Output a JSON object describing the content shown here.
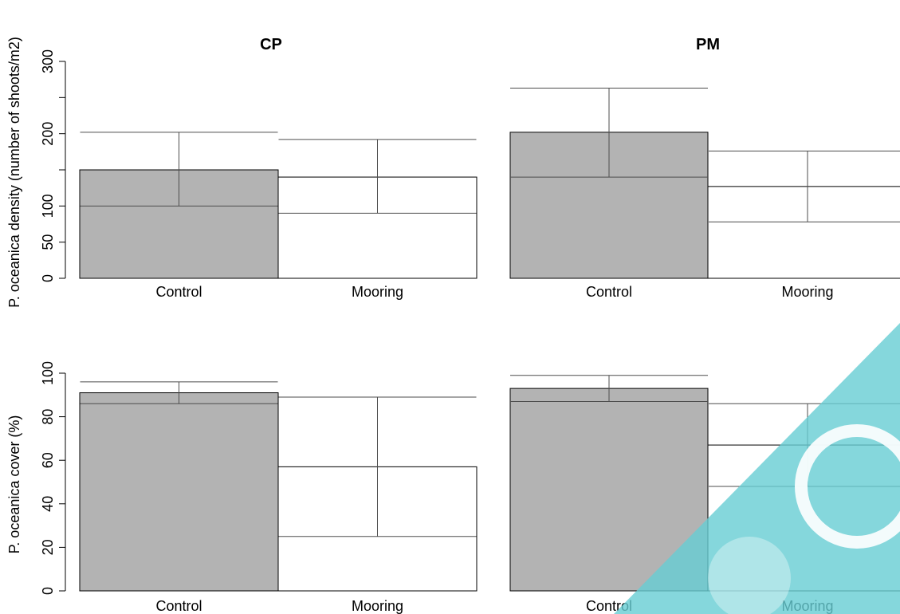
{
  "colors": {
    "control": "#b3b3b3",
    "mooring": "#ffffff",
    "stroke": "#000000",
    "errorbar": "#4d4d4d",
    "watermark": "#66cdd3"
  },
  "chart_data": [
    {
      "type": "bar",
      "title": "CP",
      "ylabel": "P. oceanica density (number of shoots/m2)",
      "categories": [
        "Control",
        "Mooring"
      ],
      "values": [
        150,
        140
      ],
      "error_low": [
        100,
        90
      ],
      "error_high": [
        202,
        192
      ],
      "ylim": [
        0,
        300
      ],
      "yticks": [
        0,
        50,
        100,
        200,
        300
      ],
      "grid": false
    },
    {
      "type": "bar",
      "title": "PM",
      "ylabel": "",
      "categories": [
        "Control",
        "Mooring"
      ],
      "values": [
        202,
        127
      ],
      "error_low": [
        140,
        78
      ],
      "error_high": [
        263,
        176
      ],
      "ylim": [
        0,
        300
      ],
      "yticks": [],
      "grid": false
    },
    {
      "type": "bar",
      "title": "",
      "ylabel": "P. oceanica cover (%)",
      "categories": [
        "Control",
        "Mooring"
      ],
      "values": [
        91,
        57
      ],
      "error_low": [
        86,
        25
      ],
      "error_high": [
        96,
        89
      ],
      "ylim": [
        0,
        100
      ],
      "yticks": [
        0,
        20,
        40,
        60,
        80,
        100
      ],
      "grid": false
    },
    {
      "type": "bar",
      "title": "",
      "ylabel": "",
      "categories": [
        "Control",
        "Mooring"
      ],
      "values": [
        93,
        67
      ],
      "error_low": [
        87,
        48
      ],
      "error_high": [
        99,
        86
      ],
      "ylim": [
        0,
        100
      ],
      "yticks": [],
      "grid": false
    }
  ]
}
